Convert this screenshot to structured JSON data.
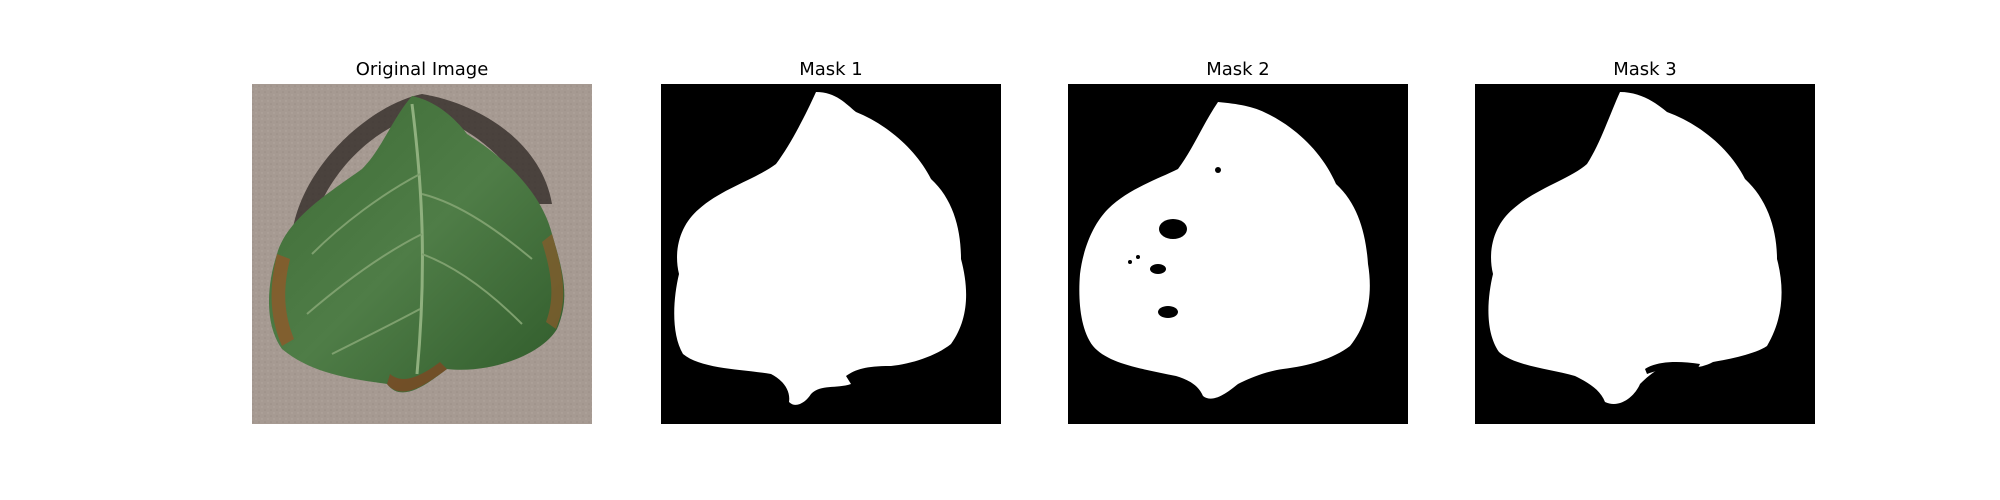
{
  "figure": {
    "panels": [
      {
        "title": "Original Image"
      },
      {
        "title": "Mask 1"
      },
      {
        "title": "Mask 2"
      },
      {
        "title": "Mask 3"
      }
    ]
  },
  "colors": {
    "background": "#ffffff",
    "mask_background": "#000000",
    "mask_foreground": "#ffffff",
    "leaf_green_dark": "#2f5a2a",
    "leaf_green_light": "#5e8a55",
    "leaf_rust": "#8b5a2b",
    "ground": "#a69a92"
  }
}
